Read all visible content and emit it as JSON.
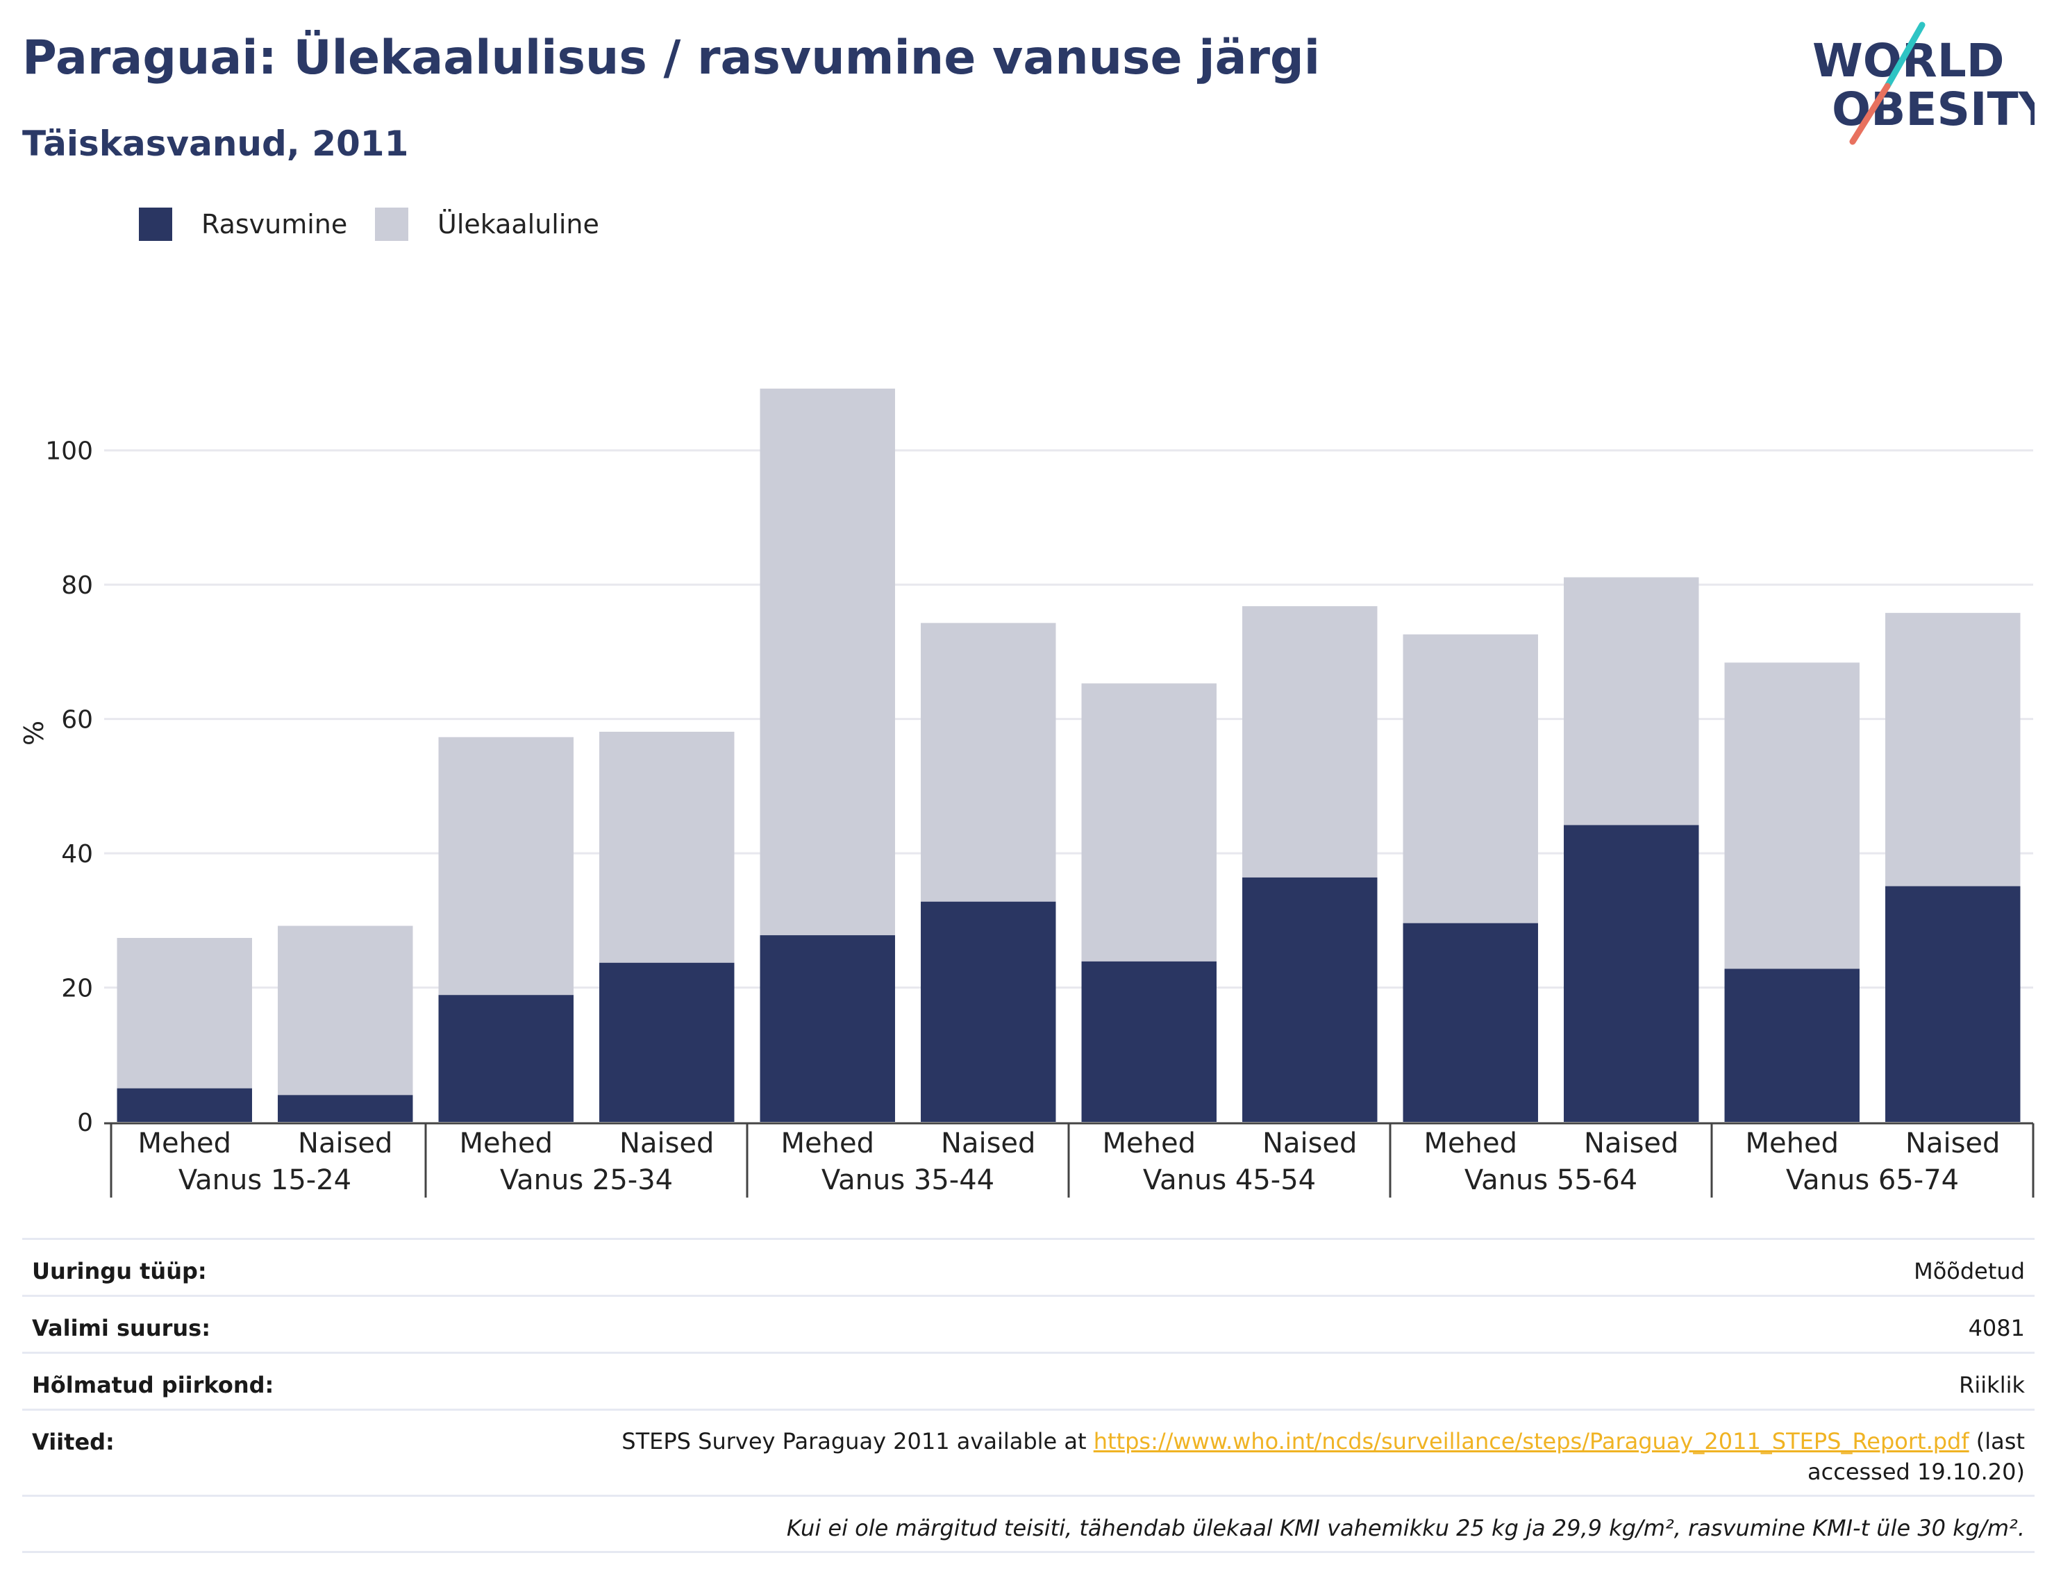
{
  "header": {
    "title": "Paraguai: Ülekaalulisus / rasvumine vanuse järgi",
    "subtitle": "Täiskasvanud, 2011"
  },
  "logo": {
    "line1": "WORLD",
    "line2": "OBESITY"
  },
  "colors": {
    "obesity": "#2a3662",
    "overweight": "#cbcdd8",
    "title": "#2b3966",
    "link": "#f0b323",
    "grid": "#e8e8ee"
  },
  "legend": [
    {
      "label": "Rasvumine",
      "color": "#2a3662"
    },
    {
      "label": "Ülekaaluline",
      "color": "#cbcdd8"
    }
  ],
  "chart_data": {
    "type": "bar",
    "stacked": true,
    "ylabel": "%",
    "ylim": [
      0,
      110
    ],
    "yticks": [
      0,
      20,
      40,
      60,
      80,
      100
    ],
    "grid": true,
    "legend_position": "top-left",
    "categories": [
      {
        "sex": "Mehed",
        "group": "Vanus 15-24"
      },
      {
        "sex": "Naised",
        "group": "Vanus 15-24"
      },
      {
        "sex": "Mehed",
        "group": "Vanus 25-34"
      },
      {
        "sex": "Naised",
        "group": "Vanus 25-34"
      },
      {
        "sex": "Mehed",
        "group": "Vanus 35-44"
      },
      {
        "sex": "Naised",
        "group": "Vanus 35-44"
      },
      {
        "sex": "Mehed",
        "group": "Vanus 45-54"
      },
      {
        "sex": "Naised",
        "group": "Vanus 45-54"
      },
      {
        "sex": "Mehed",
        "group": "Vanus 55-64"
      },
      {
        "sex": "Naised",
        "group": "Vanus 55-64"
      },
      {
        "sex": "Mehed",
        "group": "Vanus 65-74"
      },
      {
        "sex": "Naised",
        "group": "Vanus 65-74"
      }
    ],
    "groups": [
      "Vanus 15-24",
      "Vanus 25-34",
      "Vanus 35-44",
      "Vanus 45-54",
      "Vanus 55-64",
      "Vanus 65-74"
    ],
    "series": [
      {
        "name": "Rasvumine",
        "values": [
          5.0,
          4.0,
          18.9,
          23.7,
          27.8,
          32.8,
          23.9,
          36.4,
          29.6,
          44.2,
          22.8,
          35.1
        ]
      },
      {
        "name": "Ülekaaluline",
        "values": [
          22.4,
          25.2,
          38.4,
          34.4,
          81.4,
          41.5,
          41.4,
          40.4,
          43.0,
          36.9,
          45.6,
          40.7
        ]
      }
    ]
  },
  "info_table": [
    {
      "label": "Uuringu tüüp:",
      "value": "Mõõdetud"
    },
    {
      "label": "Valimi suurus:",
      "value": "4081"
    },
    {
      "label": "Hõlmatud piirkond:",
      "value": "Riiklik"
    }
  ],
  "references": {
    "label": "Viited:",
    "prefix": "STEPS Survey Paraguay 2011 available at ",
    "link": "https://www.who.int/ncds/surveillance/steps/Paraguay_2011_STEPS_Report.pdf",
    "suffix": " (last accessed 19.10.20)"
  },
  "footnote": "Kui ei ole märgitud teisiti, tähendab ülekaal KMI vahemikku 25 kg ja 29,9 kg/m², rasvumine KMI-t üle 30 kg/m²."
}
